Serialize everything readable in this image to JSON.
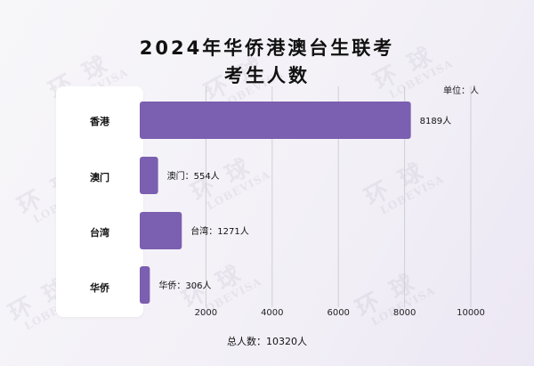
{
  "title_line1": "2024年华侨港澳台生联考",
  "title_line2": "考生人数",
  "unit_label": "单位：人",
  "total_label": "总人数：10320人",
  "watermark": {
    "big": "环 球",
    "small": "LOBEVISA"
  },
  "colors": {
    "bar": "#7b5fb0",
    "grid": "#cfcfd4",
    "panel": "#ffffff"
  },
  "chart_data": {
    "type": "bar",
    "orientation": "horizontal",
    "title": "2024年华侨港澳台生联考 考生人数",
    "unit": "人",
    "categories": [
      "香港",
      "澳门",
      "台湾",
      "华侨"
    ],
    "values": [
      8189,
      554,
      1271,
      306
    ],
    "data_labels": [
      "8189人",
      "澳门：554人",
      "台湾：1271人",
      "华侨：306人"
    ],
    "xlim": [
      0,
      10000
    ],
    "xticks": [
      2000,
      4000,
      6000,
      8000,
      10000
    ],
    "grid": true,
    "total": 10320
  }
}
